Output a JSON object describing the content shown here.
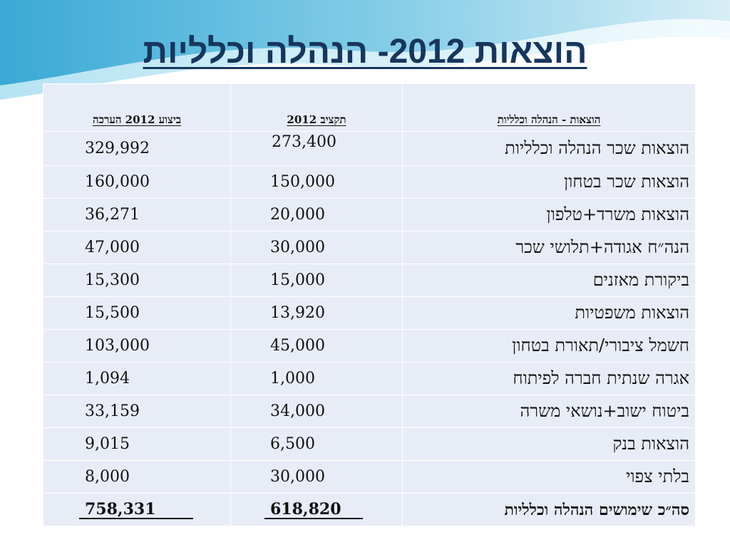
{
  "slide": {
    "title": "הוצאות 2012- הנהלה וכלליות"
  },
  "table": {
    "headers": {
      "actual": "ביצוע 2012 הערכה",
      "budget": "תקציב 2012",
      "category": "הוצאות - הנהלה וכלליות"
    },
    "rows": [
      {
        "category": "הוצאות שכר הנהלה וכלליות",
        "budget": "273,400",
        "actual": "329,992"
      },
      {
        "category": "הוצאות שכר בטחון",
        "budget": "150,000",
        "actual": "160,000"
      },
      {
        "category": "הוצאות משרד+טלפון",
        "budget": "20,000",
        "actual": "36,271"
      },
      {
        "category": "הנה״ח אגודה+תלושי שכר",
        "budget": "30,000",
        "actual": "47,000"
      },
      {
        "category": "ביקורת מאזנים",
        "budget": "15,000",
        "actual": "15,300"
      },
      {
        "category": "הוצאות משפטיות",
        "budget": "13,920",
        "actual": "15,500"
      },
      {
        "category": "חשמל ציבורי/תאורת בטחון",
        "budget": "45,000",
        "actual": "103,000"
      },
      {
        "category": "אגרה שנתית חברה לפיתוח",
        "budget": "1,000",
        "actual": "1,094"
      },
      {
        "category": "ביטוח ישוב+נושאי משרה",
        "budget": "34,000",
        "actual": "33,159"
      },
      {
        "category": "הוצאות בנק",
        "budget": "6,500",
        "actual": "9,015"
      },
      {
        "category": "בלתי צפוי",
        "budget": "30,000",
        "actual": "8,000"
      }
    ],
    "total": {
      "category": "סה״כ שימושים הנהלה וכלליות",
      "budget": "618,820",
      "actual": "758,331"
    }
  }
}
